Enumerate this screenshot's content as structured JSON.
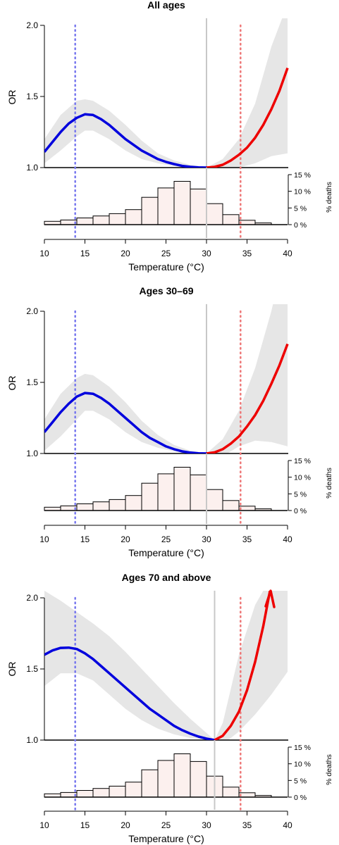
{
  "chart_data": [
    {
      "type": "line",
      "title": "All ages",
      "xlabel": "Temperature (°C)",
      "ylabel": "OR",
      "xlim": [
        10,
        40
      ],
      "ylim": [
        1.0,
        2.0
      ],
      "x_ticks": [
        "10",
        "15",
        "20",
        "25",
        "30",
        "35",
        "40"
      ],
      "y_ticks": [
        "1.0",
        "1.5",
        "2.0"
      ],
      "reference_temp": 30,
      "cold_percentile_temp": 13.8,
      "heat_percentile_temp": 34.2,
      "cold_curve": {
        "x": [
          10,
          11,
          12,
          13,
          14,
          15,
          16,
          17,
          18,
          19,
          20,
          21,
          22,
          23,
          24,
          25,
          26,
          27,
          28,
          29,
          30
        ],
        "or": [
          1.11,
          1.18,
          1.25,
          1.31,
          1.35,
          1.375,
          1.37,
          1.34,
          1.3,
          1.25,
          1.2,
          1.16,
          1.12,
          1.09,
          1.06,
          1.04,
          1.025,
          1.012,
          1.005,
          1.001,
          1.0
        ]
      },
      "heat_curve": {
        "x": [
          30,
          31,
          32,
          33,
          34,
          35,
          36,
          37,
          38,
          39,
          40
        ],
        "or": [
          1.0,
          1.005,
          1.02,
          1.05,
          1.09,
          1.14,
          1.21,
          1.3,
          1.41,
          1.54,
          1.7
        ]
      },
      "ci_band": {
        "x": [
          10,
          12,
          14,
          15,
          16,
          18,
          20,
          22,
          24,
          26,
          28,
          30,
          32,
          34,
          36,
          38,
          40
        ],
        "lower": [
          1.03,
          1.12,
          1.22,
          1.26,
          1.26,
          1.2,
          1.12,
          1.06,
          1.03,
          1.01,
          1.003,
          1.0,
          0.99,
          1.0,
          1.03,
          1.08,
          1.1
        ],
        "upper": [
          1.2,
          1.37,
          1.47,
          1.48,
          1.47,
          1.4,
          1.3,
          1.19,
          1.1,
          1.05,
          1.02,
          1.0,
          1.06,
          1.2,
          1.45,
          1.85,
          2.15
        ]
      },
      "histogram": {
        "ylabel": "% deaths",
        "y_ticks": [
          "0 %",
          "5 %",
          "10 %",
          "15 %"
        ],
        "ylim": [
          0,
          15
        ],
        "bin_starts": [
          10,
          12,
          14,
          16,
          18,
          20,
          22,
          24,
          26,
          28,
          30,
          32,
          34,
          36
        ],
        "bin_width": 2,
        "percent": [
          1.0,
          1.4,
          2.0,
          2.6,
          3.3,
          4.5,
          8.2,
          11.0,
          13.0,
          10.7,
          6.3,
          3.0,
          1.3,
          0.5
        ]
      }
    },
    {
      "type": "line",
      "title": "Ages 30–69",
      "xlabel": "Temperature (°C)",
      "ylabel": "OR",
      "xlim": [
        10,
        40
      ],
      "ylim": [
        1.0,
        2.0
      ],
      "x_ticks": [
        "10",
        "15",
        "20",
        "25",
        "30",
        "35",
        "40"
      ],
      "y_ticks": [
        "1.0",
        "1.5",
        "2.0"
      ],
      "reference_temp": 30,
      "cold_percentile_temp": 13.8,
      "heat_percentile_temp": 34.2,
      "cold_curve": {
        "x": [
          10,
          11,
          12,
          13,
          14,
          15,
          16,
          17,
          18,
          19,
          20,
          21,
          22,
          23,
          24,
          25,
          26,
          27,
          28,
          29,
          30
        ],
        "or": [
          1.15,
          1.22,
          1.29,
          1.35,
          1.4,
          1.425,
          1.42,
          1.39,
          1.35,
          1.3,
          1.25,
          1.2,
          1.15,
          1.11,
          1.08,
          1.05,
          1.03,
          1.015,
          1.006,
          1.001,
          1.0
        ]
      },
      "heat_curve": {
        "x": [
          30,
          31,
          32,
          33,
          34,
          35,
          36,
          37,
          38,
          39,
          40
        ],
        "or": [
          1.0,
          1.008,
          1.03,
          1.07,
          1.12,
          1.19,
          1.27,
          1.37,
          1.49,
          1.62,
          1.77
        ]
      },
      "ci_band": {
        "x": [
          10,
          12,
          14,
          15,
          16,
          18,
          20,
          22,
          24,
          26,
          28,
          30,
          32,
          34,
          36,
          38,
          40
        ],
        "lower": [
          1.02,
          1.12,
          1.24,
          1.3,
          1.3,
          1.24,
          1.15,
          1.08,
          1.04,
          1.015,
          1.004,
          1.0,
          0.98,
          1.05,
          1.09,
          1.08,
          1.05
        ],
        "upper": [
          1.24,
          1.42,
          1.53,
          1.56,
          1.55,
          1.47,
          1.36,
          1.23,
          1.13,
          1.06,
          1.02,
          1.0,
          1.1,
          1.3,
          1.6,
          2.0,
          2.5
        ]
      },
      "histogram": {
        "ylabel": "% deaths",
        "y_ticks": [
          "0 %",
          "5 %",
          "10 %",
          "15 %"
        ],
        "ylim": [
          0,
          15
        ],
        "bin_starts": [
          10,
          12,
          14,
          16,
          18,
          20,
          22,
          24,
          26,
          28,
          30,
          32,
          34,
          36
        ],
        "bin_width": 2,
        "percent": [
          1.0,
          1.4,
          2.0,
          2.6,
          3.3,
          4.5,
          8.2,
          11.0,
          13.0,
          10.7,
          6.3,
          3.0,
          1.3,
          0.5
        ]
      }
    },
    {
      "type": "line",
      "title": "Ages 70 and above",
      "xlabel": "Temperature (°C)",
      "ylabel": "OR",
      "xlim": [
        10,
        40
      ],
      "ylim": [
        1.0,
        2.0
      ],
      "x_ticks": [
        "10",
        "15",
        "20",
        "25",
        "30",
        "35",
        "40"
      ],
      "y_ticks": [
        "1.0",
        "1.5",
        "2.0"
      ],
      "reference_temp": 31,
      "cold_percentile_temp": 13.8,
      "heat_percentile_temp": 34.2,
      "cold_curve": {
        "x": [
          10,
          11,
          12,
          13,
          14,
          15,
          16,
          17,
          18,
          19,
          20,
          21,
          22,
          23,
          24,
          25,
          26,
          27,
          28,
          29,
          30,
          31
        ],
        "or": [
          1.6,
          1.63,
          1.648,
          1.65,
          1.64,
          1.61,
          1.57,
          1.52,
          1.47,
          1.42,
          1.37,
          1.32,
          1.27,
          1.22,
          1.18,
          1.14,
          1.1,
          1.07,
          1.045,
          1.025,
          1.01,
          1.0
        ]
      },
      "heat_curve": {
        "x": [
          31,
          32,
          33,
          34,
          35,
          36,
          37,
          38
        ],
        "or": [
          1.0,
          1.03,
          1.1,
          1.2,
          1.35,
          1.55,
          1.8,
          2.1
        ]
      },
      "ci_band": {
        "x": [
          10,
          12,
          14,
          16,
          18,
          20,
          22,
          24,
          26,
          28,
          30,
          31,
          32,
          34,
          36,
          38,
          40
        ],
        "lower": [
          1.38,
          1.47,
          1.47,
          1.42,
          1.32,
          1.22,
          1.14,
          1.08,
          1.04,
          1.015,
          1.004,
          1.0,
          0.97,
          1.06,
          1.18,
          1.32,
          1.48
        ],
        "upper": [
          2.05,
          1.98,
          1.9,
          1.82,
          1.73,
          1.62,
          1.5,
          1.38,
          1.26,
          1.15,
          1.05,
          1.0,
          1.12,
          1.6,
          1.95,
          2.15,
          2.2
        ]
      },
      "histogram": {
        "ylabel": "% deaths",
        "y_ticks": [
          "0 %",
          "5 %",
          "10 %",
          "15 %"
        ],
        "ylim": [
          0,
          15
        ],
        "bin_starts": [
          10,
          12,
          14,
          16,
          18,
          20,
          22,
          24,
          26,
          28,
          30,
          32,
          34,
          36
        ],
        "bin_width": 2,
        "percent": [
          1.0,
          1.4,
          2.0,
          2.6,
          3.3,
          4.5,
          8.2,
          11.0,
          13.0,
          10.7,
          6.3,
          3.0,
          1.3,
          0.5
        ]
      }
    }
  ],
  "colors": {
    "cold": "#0000dd",
    "heat": "#ee0000",
    "band": "#e6e6e6",
    "reference_line": "#c8c8c8",
    "cold_marker": "#7777ee",
    "heat_marker": "#ee7777",
    "hist_fill": "#fcf0ee"
  }
}
